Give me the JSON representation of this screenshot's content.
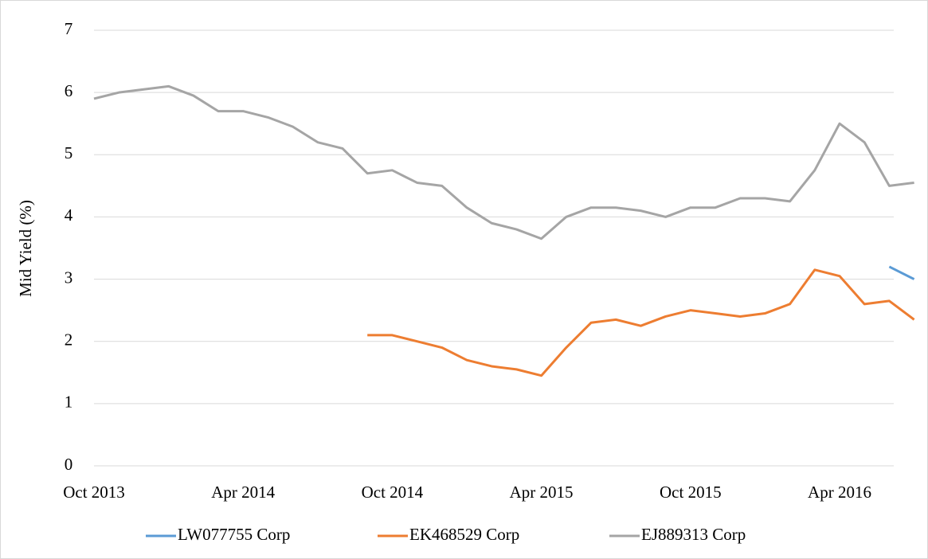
{
  "chart_data": {
    "type": "line",
    "y_label": "Mid Yield (%)",
    "x": [
      "Oct 2013",
      "Nov 2013",
      "Dec 2013",
      "Jan 2014",
      "Feb 2014",
      "Mar 2014",
      "Apr 2014",
      "May 2014",
      "Jun 2014",
      "Jul 2014",
      "Aug 2014",
      "Sep 2014",
      "Oct 2014",
      "Nov 2014",
      "Dec 2014",
      "Jan 2015",
      "Feb 2015",
      "Mar 2015",
      "Apr 2015",
      "May 2015",
      "Jun 2015",
      "Jul 2015",
      "Aug 2015",
      "Sep 2015",
      "Oct 2015",
      "Nov 2015",
      "Dec 2015",
      "Jan 2016",
      "Feb 2016",
      "Mar 2016",
      "Apr 2016",
      "May 2016",
      "Jun 2016",
      "Jul 2016"
    ],
    "xticks": [
      "Oct 2013",
      "Apr 2014",
      "Oct 2014",
      "Apr 2015",
      "Oct 2015",
      "Apr 2016"
    ],
    "series": [
      {
        "name": "LW077755 Corp",
        "color": "#5b9bd5",
        "values": [
          null,
          null,
          null,
          null,
          null,
          null,
          null,
          null,
          null,
          null,
          null,
          null,
          null,
          null,
          null,
          null,
          null,
          null,
          null,
          null,
          null,
          null,
          null,
          null,
          null,
          null,
          null,
          null,
          null,
          null,
          null,
          null,
          3.2,
          3.0
        ]
      },
      {
        "name": "EK468529 Corp",
        "color": "#ed7d31",
        "values": [
          null,
          null,
          null,
          null,
          null,
          null,
          null,
          null,
          null,
          null,
          null,
          2.1,
          2.1,
          2.0,
          1.9,
          1.7,
          1.6,
          1.55,
          1.45,
          1.9,
          2.3,
          2.35,
          2.25,
          2.4,
          2.5,
          2.45,
          2.4,
          2.45,
          2.6,
          3.15,
          3.05,
          2.6,
          2.65,
          2.35
        ]
      },
      {
        "name": "EJ889313 Corp",
        "color": "#a5a5a5",
        "values": [
          5.9,
          6.0,
          6.05,
          6.1,
          5.95,
          5.7,
          5.7,
          5.6,
          5.45,
          5.2,
          5.1,
          4.7,
          4.75,
          4.55,
          4.5,
          4.15,
          3.9,
          3.8,
          3.65,
          4.0,
          4.15,
          4.15,
          4.1,
          4.0,
          4.15,
          4.15,
          4.3,
          4.3,
          4.25,
          4.75,
          5.5,
          5.2,
          4.5,
          4.55
        ]
      }
    ],
    "ylim": [
      0,
      7
    ],
    "yticks": [
      0,
      1,
      2,
      3,
      4,
      5,
      6,
      7
    ],
    "grid": true,
    "legend": "bottom"
  }
}
